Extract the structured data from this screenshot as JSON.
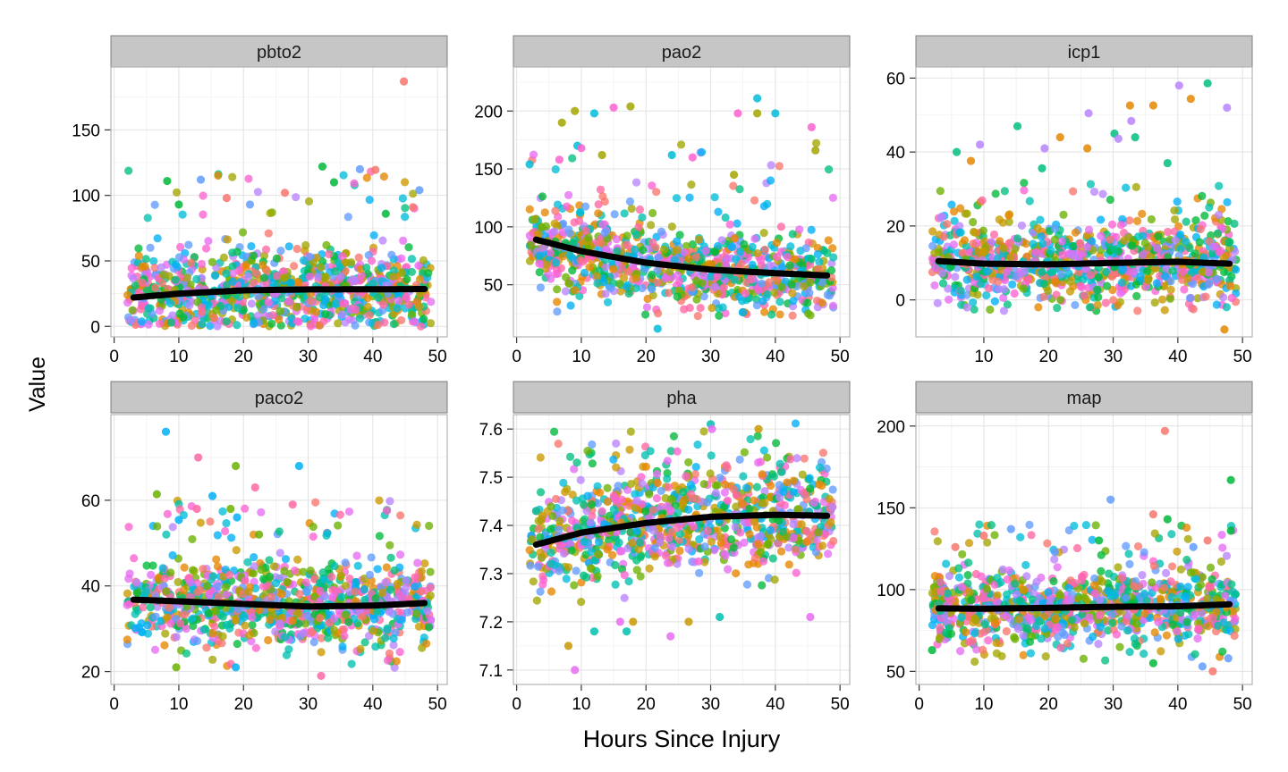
{
  "figure": {
    "xlabel": "Hours Since Injury",
    "ylabel": "Value"
  },
  "chart_data": [
    {
      "type": "scatter",
      "title": "pbto2",
      "xlim": [
        -0.5,
        51.5
      ],
      "ylim": [
        -8,
        198
      ],
      "xticks": [
        0,
        10,
        20,
        30,
        40,
        50
      ],
      "yticks": [
        0,
        50,
        100,
        150
      ],
      "cloud": {
        "center": [
          25,
          28
        ],
        "spread": 16,
        "lower_bound": 0,
        "outlier_high": [
          80,
          120
        ]
      },
      "outliers": [
        [
          44.8,
          187
        ],
        [
          32.2,
          122
        ],
        [
          38,
          120
        ],
        [
          40.4,
          119.5
        ],
        [
          34,
          110
        ],
        [
          47.2,
          104
        ],
        [
          26.4,
          102
        ],
        [
          8.2,
          111
        ],
        [
          13.4,
          112
        ],
        [
          17.4,
          98
        ],
        [
          10,
          93
        ],
        [
          21,
          93
        ],
        [
          46.2,
          91
        ],
        [
          42,
          86
        ]
      ],
      "trend": {
        "x": [
          3,
          10,
          20,
          30,
          40,
          48
        ],
        "y": [
          22,
          25,
          27.5,
          28.2,
          28.3,
          28.5
        ]
      }
    },
    {
      "type": "scatter",
      "title": "pao2",
      "xlim": [
        -0.5,
        51.5
      ],
      "ylim": [
        5,
        238
      ],
      "xticks": [
        0,
        10,
        20,
        30,
        40,
        50
      ],
      "yticks": [
        50,
        100,
        150,
        200
      ],
      "cloud": {
        "center": [
          25,
          68
        ],
        "spread": 18,
        "lower_bound": 22,
        "outlier_high": [
          110,
          175
        ]
      },
      "outliers": [
        [
          9,
          200
        ],
        [
          12,
          198
        ],
        [
          15,
          203
        ],
        [
          17.6,
          204
        ],
        [
          9.4,
          170
        ],
        [
          10,
          168
        ],
        [
          7,
          190
        ],
        [
          37.2,
          211
        ],
        [
          34.2,
          198
        ],
        [
          37.2,
          198
        ],
        [
          40,
          198
        ],
        [
          45.6,
          186
        ],
        [
          46.2,
          166
        ],
        [
          2,
          154
        ],
        [
          6.6,
          158
        ],
        [
          13.2,
          162
        ],
        [
          24,
          162
        ],
        [
          27.2,
          160
        ],
        [
          33.6,
          145
        ],
        [
          21.8,
          12
        ]
      ],
      "trend": {
        "x": [
          3,
          10,
          20,
          30,
          40,
          48
        ],
        "y": [
          89,
          79,
          69,
          63,
          60,
          58
        ]
      }
    },
    {
      "type": "scatter",
      "title": "icp1",
      "xlim": [
        -0.5,
        51.5
      ],
      "ylim": [
        -10,
        63
      ],
      "xticks": [
        10,
        20,
        30,
        40,
        50
      ],
      "yticks": [
        0,
        20,
        40,
        60
      ],
      "cloud": {
        "center": [
          25,
          10
        ],
        "spread": 5.5,
        "lower_bound": -3,
        "outlier_high": [
          20,
          32
        ]
      },
      "outliers": [
        [
          5.8,
          40
        ],
        [
          9.4,
          42
        ],
        [
          8,
          37.6
        ],
        [
          15.2,
          47
        ],
        [
          19.4,
          41
        ],
        [
          21.8,
          44
        ],
        [
          19,
          35.6
        ],
        [
          26.2,
          50.5
        ],
        [
          26,
          41
        ],
        [
          30.2,
          45
        ],
        [
          30.8,
          43.6
        ],
        [
          32.6,
          52.6
        ],
        [
          33.4,
          44
        ],
        [
          32.8,
          48.4
        ],
        [
          36.2,
          52.6
        ],
        [
          38.4,
          37
        ],
        [
          40.2,
          58
        ],
        [
          42,
          54.4
        ],
        [
          44.6,
          58.6
        ],
        [
          47.6,
          52
        ],
        [
          47.2,
          -8
        ],
        [
          26.4,
          -2
        ]
      ],
      "trend": {
        "x": [
          3,
          10,
          20,
          30,
          40,
          48
        ],
        "y": [
          10.5,
          9.8,
          9.6,
          10,
          10.3,
          9.8
        ]
      }
    },
    {
      "type": "scatter",
      "title": "paco2",
      "xlim": [
        -0.5,
        51.5
      ],
      "ylim": [
        17,
        80
      ],
      "xticks": [
        0,
        10,
        20,
        30,
        40,
        50
      ],
      "yticks": [
        20,
        40,
        60
      ],
      "cloud": {
        "center": [
          25,
          36
        ],
        "spread": 5,
        "lower_bound": 20,
        "outlier_high": [
          50,
          60
        ]
      },
      "outliers": [
        [
          8,
          76
        ],
        [
          13,
          70
        ],
        [
          18.8,
          68
        ],
        [
          28.6,
          68
        ],
        [
          21.8,
          63
        ],
        [
          6.6,
          61.4
        ],
        [
          15.2,
          61
        ],
        [
          27.6,
          59
        ],
        [
          18,
          58
        ],
        [
          19,
          56
        ],
        [
          12.8,
          58
        ],
        [
          22.4,
          52
        ],
        [
          10,
          55.4
        ],
        [
          32,
          19
        ],
        [
          9.6,
          21
        ],
        [
          18.8,
          21
        ]
      ],
      "trend": {
        "x": [
          3,
          10,
          20,
          30,
          40,
          48
        ],
        "y": [
          36.8,
          36.4,
          35.8,
          35.2,
          35.4,
          36
        ]
      }
    },
    {
      "type": "scatter",
      "title": "pha",
      "xlim": [
        -0.5,
        51.5
      ],
      "ylim": [
        7.07,
        7.63
      ],
      "xticks": [
        0,
        10,
        20,
        30,
        40,
        50
      ],
      "yticks": [
        7.1,
        7.2,
        7.3,
        7.4,
        7.5,
        7.6
      ],
      "cloud": {
        "center": [
          25,
          7.42
        ],
        "spread": 0.055,
        "lower_bound": 7.15,
        "outlier_high": [
          7.5,
          7.6
        ]
      },
      "outliers": [
        [
          9,
          7.1
        ],
        [
          8,
          7.15
        ],
        [
          30,
          7.61
        ],
        [
          30.2,
          7.6
        ],
        [
          37.4,
          7.6
        ],
        [
          12,
          7.18
        ],
        [
          16,
          7.2
        ],
        [
          18,
          7.2
        ],
        [
          17,
          7.18
        ],
        [
          23.8,
          7.17
        ],
        [
          26.6,
          7.2
        ],
        [
          31.4,
          7.21
        ],
        [
          45.4,
          7.21
        ],
        [
          4,
          7.42
        ],
        [
          3,
          7.43
        ]
      ],
      "trend": {
        "x": [
          3,
          10,
          20,
          30,
          40,
          48
        ],
        "y": [
          7.36,
          7.385,
          7.405,
          7.418,
          7.422,
          7.42
        ]
      }
    },
    {
      "type": "scatter",
      "title": "map",
      "xlim": [
        -0.5,
        51.5
      ],
      "ylim": [
        42,
        207
      ],
      "xticks": [
        0,
        10,
        20,
        30,
        40,
        50
      ],
      "yticks": [
        50,
        100,
        150,
        200
      ],
      "cloud": {
        "center": [
          25,
          89
        ],
        "spread": 12,
        "lower_bound": 55,
        "outlier_high": [
          120,
          140
        ]
      },
      "outliers": [
        [
          38,
          197
        ],
        [
          48.2,
          167
        ],
        [
          29.6,
          155
        ],
        [
          36.2,
          146
        ],
        [
          38.4,
          143
        ],
        [
          14.2,
          137
        ],
        [
          10,
          133
        ],
        [
          48.2,
          136
        ],
        [
          42.4,
          126
        ],
        [
          44.6,
          130
        ],
        [
          27.8,
          130
        ],
        [
          21,
          123
        ],
        [
          5.6,
          126
        ],
        [
          2,
          63
        ],
        [
          43.8,
          53
        ],
        [
          45.4,
          50
        ],
        [
          36.2,
          55
        ],
        [
          47.8,
          58
        ]
      ],
      "trend": {
        "x": [
          3,
          10,
          20,
          30,
          40,
          48
        ],
        "y": [
          88.5,
          88.3,
          88.8,
          89.5,
          89.8,
          91
        ]
      }
    }
  ],
  "colors": {
    "panel_background": "#ffffff",
    "panel_border": "#b3b3b3",
    "grid_major": "#e2e2e2",
    "grid_minor": "#f1f1f1",
    "strip_fill": "#c6c6c6",
    "strip_border": "#7f7f7f",
    "trend_line": "#000000",
    "axis_text": "#000000",
    "point_palette": [
      "#f8766d",
      "#e58700",
      "#c99800",
      "#a3a500",
      "#6bb100",
      "#00ba38",
      "#00bf7d",
      "#00c0af",
      "#00bcd8",
      "#00b0f6",
      "#619cff",
      "#b983ff",
      "#e76bf3",
      "#fd61d1",
      "#ff67a4"
    ]
  }
}
